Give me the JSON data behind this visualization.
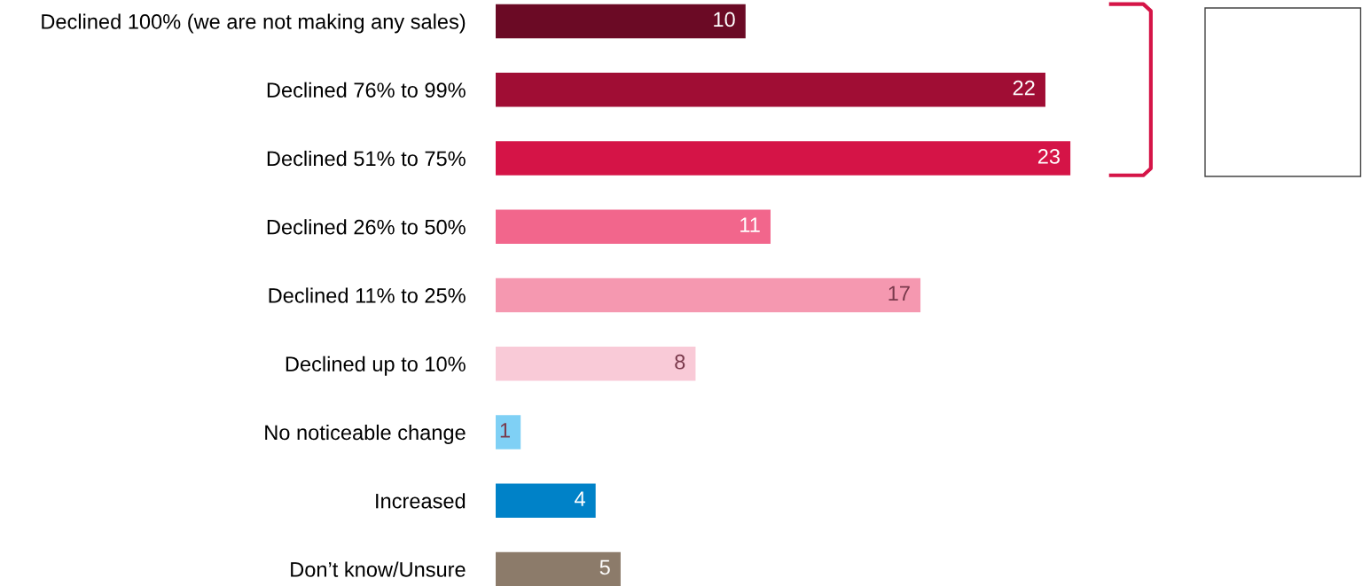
{
  "chart_data": {
    "type": "bar",
    "orientation": "horizontal",
    "data_labels": true,
    "legend": false,
    "grid": false,
    "categories": [
      "Declined 100% (we are not making any sales)",
      "Declined 76% to 99%",
      "Declined 51% to 75%",
      "Declined 26% to 50%",
      "Declined 11% to 25%",
      "Declined up to 10%",
      "No noticeable change",
      "Increased",
      "Don’t know/Unsure"
    ],
    "values": [
      10,
      22,
      23,
      11,
      17,
      8,
      1,
      4,
      5
    ],
    "colors": [
      "#6b0a25",
      "#a00d34",
      "#d51447",
      "#f2668c",
      "#f598b0",
      "#f9cad7",
      "#7fd0f5",
      "#0082c8",
      "#8c7b6a"
    ]
  }
}
